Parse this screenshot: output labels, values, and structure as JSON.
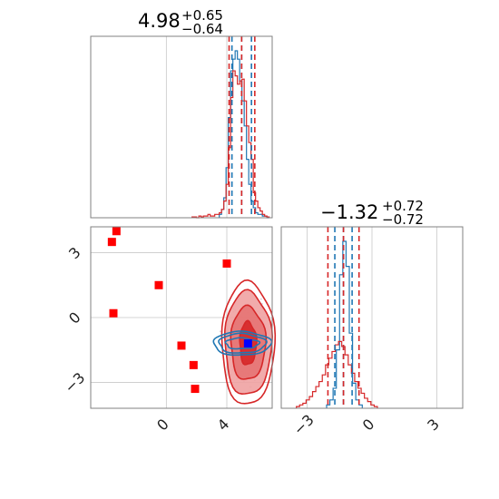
{
  "colors": {
    "blue": "#1f77b4",
    "red": "#d62728",
    "truth": "#ff0000",
    "truth_center": "#0000ff",
    "frame": "#808080",
    "grid": "#c8c8c8"
  },
  "chart_data": [
    {
      "type": "histogram",
      "panel": "param1-marginal",
      "title": {
        "median": "4.98",
        "plus": "+0.65",
        "minus": "−0.64"
      },
      "xlim": [
        -5,
        7
      ],
      "grid": true,
      "series": [
        {
          "color": "#1f77b4",
          "bin_edges": [
            3.5,
            3.65,
            3.8,
            3.95,
            4.1,
            4.25,
            4.4,
            4.55,
            4.7,
            4.85,
            5.0,
            5.15,
            5.3,
            5.45,
            5.6,
            5.75,
            5.9,
            6.05,
            6.2,
            6.35,
            6.5,
            6.65,
            6.8
          ],
          "density": [
            0.02,
            0.05,
            0.12,
            0.3,
            0.6,
            0.88,
            0.95,
            1.0,
            0.95,
            0.82,
            0.7,
            0.55,
            0.35,
            0.2,
            0.1,
            0.06,
            0.03,
            0.02,
            0.02,
            0.01,
            0.01,
            0.0
          ],
          "quantiles": [
            4.34,
            4.98,
            5.63
          ]
        },
        {
          "color": "#d62728",
          "bin_edges": [
            1.7,
            1.85,
            2.0,
            2.15,
            2.3,
            2.45,
            2.6,
            2.75,
            2.9,
            3.05,
            3.2,
            3.35,
            3.5,
            3.65,
            3.8,
            3.95,
            4.1,
            4.25,
            4.4,
            4.55,
            4.7,
            4.85,
            5.0,
            5.15,
            5.3,
            5.45,
            5.6,
            5.75,
            5.9,
            6.05,
            6.2,
            6.35,
            6.5,
            6.65,
            6.8
          ],
          "density": [
            0.005,
            0.005,
            0.0,
            0.01,
            0.005,
            0.01,
            0.01,
            0.02,
            0.01,
            0.01,
            0.02,
            0.02,
            0.03,
            0.05,
            0.1,
            0.2,
            0.42,
            0.72,
            0.88,
            0.85,
            0.8,
            0.82,
            0.83,
            0.7,
            0.55,
            0.45,
            0.35,
            0.15,
            0.1,
            0.06,
            0.04,
            0.02,
            0.01,
            0.005
          ],
          "quantiles": [
            4.15,
            4.98,
            5.85
          ]
        }
      ]
    },
    {
      "type": "contour",
      "panel": "joint",
      "xlim": [
        -5,
        7
      ],
      "ylim": [
        -4.2,
        4.2
      ],
      "xticks": [
        {
          "v": 0,
          "label": "0"
        },
        {
          "v": 4,
          "label": "4"
        }
      ],
      "yticks": [
        {
          "v": 3,
          "label": "3"
        },
        {
          "v": 0,
          "label": "0"
        },
        {
          "v": -3,
          "label": "−3"
        }
      ],
      "grid": true,
      "contours": {
        "red": {
          "cx": 5.4,
          "cy": -1.2,
          "levels": [
            [
              0.55,
              1.0,
              0.45
            ],
            [
              1.15,
              1.7,
              0.25
            ],
            [
              1.55,
              2.4,
              0.15
            ],
            [
              1.75,
              2.85,
              0.0
            ]
          ]
        },
        "blue": {
          "cx": 5.0,
          "cy": -1.2,
          "levels": [
            [
              1.1,
              0.25,
              0.7
            ],
            [
              1.55,
              0.45,
              0.45
            ],
            [
              1.9,
              0.55,
              0.2
            ]
          ]
        }
      },
      "truth_points": [
        {
          "x": -3.3,
          "y": 4.0
        },
        {
          "x": -3.6,
          "y": 3.5
        },
        {
          "x": -0.5,
          "y": 1.5
        },
        {
          "x": -3.5,
          "y": 0.2
        },
        {
          "x": 4.0,
          "y": 2.5
        },
        {
          "x": 1.0,
          "y": -1.3
        },
        {
          "x": 1.8,
          "y": -2.2
        },
        {
          "x": 1.9,
          "y": -3.3
        }
      ],
      "truth_center": {
        "x": 5.4,
        "y": -1.2
      }
    },
    {
      "type": "histogram",
      "panel": "param2-marginal",
      "title": {
        "median": "−1.32",
        "plus": "+0.72",
        "minus": "−0.72"
      },
      "xlim": [
        -4.2,
        4.2
      ],
      "xticks": [
        {
          "v": -3,
          "label": "−3"
        },
        {
          "v": 0,
          "label": "0"
        },
        {
          "v": 3,
          "label": "3"
        }
      ],
      "grid": true,
      "series": [
        {
          "color": "#1f77b4",
          "bin_edges": [
            -2.1,
            -1.95,
            -1.8,
            -1.65,
            -1.5,
            -1.35,
            -1.2,
            -1.05,
            -0.9,
            -0.75,
            -0.6,
            -0.45
          ],
          "density": [
            0.02,
            0.05,
            0.12,
            0.35,
            0.8,
            1.0,
            0.85,
            0.45,
            0.15,
            0.05,
            0.02
          ],
          "quantiles": [
            -1.72,
            -1.32,
            -0.92
          ]
        },
        {
          "color": "#d62728",
          "bin_edges": [
            -3.5,
            -3.35,
            -3.2,
            -3.05,
            -2.9,
            -2.75,
            -2.6,
            -2.45,
            -2.3,
            -2.15,
            -2.0,
            -1.85,
            -1.7,
            -1.55,
            -1.4,
            -1.25,
            -1.1,
            -0.95,
            -0.8,
            -0.65,
            -0.5,
            -0.35,
            -0.2,
            -0.05,
            0.1,
            0.25
          ],
          "density": [
            0.01,
            0.02,
            0.03,
            0.05,
            0.07,
            0.1,
            0.13,
            0.16,
            0.2,
            0.26,
            0.3,
            0.34,
            0.38,
            0.4,
            0.37,
            0.32,
            0.26,
            0.21,
            0.16,
            0.12,
            0.09,
            0.06,
            0.04,
            0.02,
            0.01
          ],
          "quantiles": [
            -2.04,
            -1.32,
            -0.6
          ]
        }
      ]
    }
  ]
}
